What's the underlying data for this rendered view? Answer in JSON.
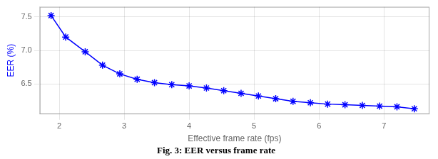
{
  "chart_data": {
    "type": "line",
    "title": "Fig. 3: EER versus frame rate",
    "x": [
      1.875,
      2.1,
      2.4,
      2.667,
      2.933,
      3.2,
      3.467,
      3.733,
      4.0,
      4.267,
      4.533,
      4.8,
      5.067,
      5.333,
      5.6,
      5.867,
      6.133,
      6.4,
      6.667,
      6.933,
      7.2,
      7.467
    ],
    "values": [
      7.52,
      7.2,
      6.98,
      6.78,
      6.65,
      6.57,
      6.52,
      6.49,
      6.47,
      6.44,
      6.4,
      6.36,
      6.32,
      6.28,
      6.24,
      6.22,
      6.2,
      6.19,
      6.18,
      6.17,
      6.16,
      6.13
    ],
    "color": "#0000FF",
    "marker": "star",
    "xlabel": "Effective frame rate (fps)",
    "ylabel": "EER (%)",
    "xlim": [
      1.7,
      7.7
    ],
    "ylim": [
      6.05,
      7.65
    ],
    "xticks": [
      2,
      3,
      4,
      5,
      6,
      7
    ],
    "yticks": [
      6.5,
      7.0,
      7.5
    ],
    "grid": true
  }
}
